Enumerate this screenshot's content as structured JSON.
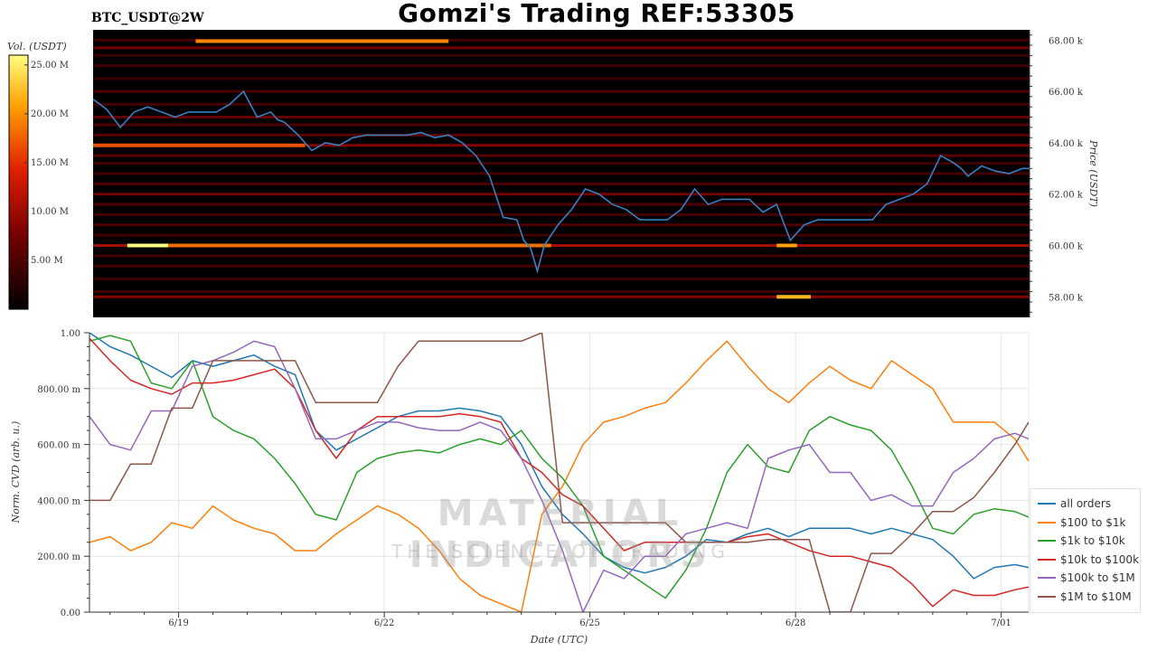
{
  "header": {
    "title": "Gomzi's Trading REF:53305",
    "symbol": "BTC_USDT@2W"
  },
  "watermark": {
    "line1": "MATERIAL INDICATORS",
    "line2": "THE SCIENCE OF TRADING"
  },
  "colors": {
    "price_line": "#3a7fc1",
    "heatmap_bg": "#000000"
  },
  "chart_data": [
    {
      "type": "heatmap",
      "title": "",
      "ylabel": "Price (USDT)",
      "colorbar_label": "Vol. (USDT)",
      "ylim": [
        57200,
        68400
      ],
      "yticks": [
        58000,
        60000,
        62000,
        64000,
        66000,
        68000
      ],
      "ytick_labels": [
        "58.00 k",
        "60.00 k",
        "62.00 k",
        "64.00 k",
        "66.00 k",
        "68.00 k"
      ],
      "colorbar_ticks": [
        5,
        10,
        15,
        20,
        25
      ],
      "colorbar_tick_labels": [
        "5.00 M",
        "10.00 M",
        "15.00 M",
        "20.00 M",
        "25.00 M"
      ],
      "colorbar_range": [
        0,
        26
      ],
      "xlim": [
        17.7,
        31.4
      ],
      "price_series": {
        "name": "",
        "x": [
          17.7,
          17.9,
          18.1,
          18.3,
          18.5,
          18.7,
          18.9,
          19.1,
          19.3,
          19.5,
          19.7,
          19.9,
          20.1,
          20.3,
          20.4,
          20.5,
          20.7,
          20.9,
          21.1,
          21.3,
          21.5,
          21.7,
          21.9,
          22.1,
          22.3,
          22.5,
          22.7,
          22.9,
          23.1,
          23.3,
          23.5,
          23.7,
          23.9,
          24.0,
          24.1,
          24.2,
          24.3,
          24.5,
          24.7,
          24.8,
          24.9,
          25.1,
          25.3,
          25.5,
          25.7,
          25.9,
          26.1,
          26.3,
          26.5,
          26.7,
          26.9,
          27.1,
          27.3,
          27.5,
          27.7,
          27.9,
          28.1,
          28.3,
          28.5,
          28.7,
          28.9,
          29.1,
          29.3,
          29.5,
          29.7,
          29.9,
          30.1,
          30.3,
          30.4,
          30.5,
          30.7,
          30.9,
          31.1,
          31.3,
          31.4
        ],
        "y": [
          65700,
          65300,
          64600,
          65200,
          65400,
          65200,
          65000,
          65200,
          65200,
          65200,
          65500,
          66000,
          65000,
          65200,
          64900,
          64800,
          64300,
          63700,
          64000,
          63900,
          64200,
          64300,
          64300,
          64300,
          64300,
          64400,
          64200,
          64300,
          64000,
          63500,
          62700,
          61100,
          61000,
          60200,
          59900,
          59000,
          60000,
          60800,
          61400,
          61800,
          62200,
          62000,
          61600,
          61400,
          61000,
          61000,
          61000,
          61400,
          62200,
          61600,
          61800,
          61800,
          61800,
          61300,
          61600,
          60200,
          60800,
          61000,
          61000,
          61000,
          61000,
          61000,
          61600,
          61800,
          62000,
          62400,
          63500,
          63200,
          63000,
          62700,
          63100,
          62900,
          62800,
          63000,
          63000
        ]
      },
      "levels": [
        {
          "price": 58000,
          "intensity": 0.6,
          "from": 17.7,
          "to": 31.4
        },
        {
          "price": 58200,
          "intensity": 0.3,
          "from": 17.7,
          "to": 31.4
        },
        {
          "price": 58700,
          "intensity": 0.25,
          "from": 17.7,
          "to": 31.4
        },
        {
          "price": 59200,
          "intensity": 0.3,
          "from": 17.7,
          "to": 31.4
        },
        {
          "price": 59600,
          "intensity": 0.3,
          "from": 17.7,
          "to": 31.4
        },
        {
          "price": 60000,
          "intensity": 0.75,
          "from": 17.7,
          "to": 31.4
        },
        {
          "price": 60400,
          "intensity": 0.3,
          "from": 17.7,
          "to": 31.4
        },
        {
          "price": 60800,
          "intensity": 0.35,
          "from": 17.7,
          "to": 31.4
        },
        {
          "price": 61200,
          "intensity": 0.3,
          "from": 17.7,
          "to": 31.4
        },
        {
          "price": 61600,
          "intensity": 0.35,
          "from": 17.7,
          "to": 31.4
        },
        {
          "price": 62000,
          "intensity": 0.5,
          "from": 17.7,
          "to": 31.4
        },
        {
          "price": 62400,
          "intensity": 0.35,
          "from": 17.7,
          "to": 31.4
        },
        {
          "price": 62800,
          "intensity": 0.3,
          "from": 17.7,
          "to": 31.4
        },
        {
          "price": 63200,
          "intensity": 0.3,
          "from": 17.7,
          "to": 31.4
        },
        {
          "price": 63500,
          "intensity": 0.4,
          "from": 17.7,
          "to": 31.4
        },
        {
          "price": 63900,
          "intensity": 0.6,
          "from": 17.7,
          "to": 31.4
        },
        {
          "price": 64300,
          "intensity": 0.4,
          "from": 17.7,
          "to": 31.4
        },
        {
          "price": 64700,
          "intensity": 0.35,
          "from": 17.7,
          "to": 31.4
        },
        {
          "price": 65000,
          "intensity": 0.45,
          "from": 17.7,
          "to": 31.4
        },
        {
          "price": 65500,
          "intensity": 0.3,
          "from": 17.7,
          "to": 31.4
        },
        {
          "price": 66000,
          "intensity": 0.35,
          "from": 17.7,
          "to": 31.4
        },
        {
          "price": 66500,
          "intensity": 0.25,
          "from": 17.7,
          "to": 31.4
        },
        {
          "price": 67000,
          "intensity": 0.3,
          "from": 17.7,
          "to": 31.4
        },
        {
          "price": 67400,
          "intensity": 0.25,
          "from": 17.7,
          "to": 31.4
        },
        {
          "price": 67700,
          "intensity": 0.5,
          "from": 17.7,
          "to": 31.4
        },
        {
          "price": 68000,
          "intensity": 0.3,
          "from": 17.7,
          "to": 31.4
        }
      ],
      "walls": [
        {
          "price": 67960,
          "from": 19.2,
          "to": 22.9,
          "intensity": 0.75
        },
        {
          "price": 60000,
          "from": 18.2,
          "to": 18.8,
          "intensity": 1.0
        },
        {
          "price": 60000,
          "from": 18.8,
          "to": 24.4,
          "intensity": 0.7
        },
        {
          "price": 60000,
          "from": 27.7,
          "to": 28.0,
          "intensity": 0.8
        },
        {
          "price": 58000,
          "from": 27.7,
          "to": 28.2,
          "intensity": 0.85
        },
        {
          "price": 63900,
          "from": 17.7,
          "to": 20.8,
          "intensity": 0.65
        }
      ]
    },
    {
      "type": "line",
      "title": "",
      "xlabel": "Date (UTC)",
      "ylabel": "Norm. CVD (arb. u.)",
      "xlim": [
        17.7,
        31.4
      ],
      "ylim": [
        0,
        1
      ],
      "xticks": [
        19,
        22,
        25,
        28,
        31
      ],
      "xtick_labels": [
        "6/19",
        "6/22",
        "6/25",
        "6/28",
        "7/01"
      ],
      "yticks": [
        0,
        0.2,
        0.4,
        0.6,
        0.8,
        1.0
      ],
      "ytick_labels": [
        "0.00",
        "200.00 m",
        "400.00 m",
        "600.00 m",
        "800.00 m",
        "1.00"
      ],
      "grid": true,
      "legend_position": "lower-right",
      "x": [
        17.7,
        18.0,
        18.3,
        18.6,
        18.9,
        19.2,
        19.5,
        19.8,
        20.1,
        20.4,
        20.7,
        21.0,
        21.3,
        21.6,
        21.9,
        22.2,
        22.5,
        22.8,
        23.1,
        23.4,
        23.7,
        24.0,
        24.3,
        24.6,
        24.9,
        25.2,
        25.5,
        25.8,
        26.1,
        26.4,
        26.7,
        27.0,
        27.3,
        27.6,
        27.9,
        28.2,
        28.5,
        28.8,
        29.1,
        29.4,
        29.7,
        30.0,
        30.3,
        30.6,
        30.9,
        31.2,
        31.4
      ],
      "series": [
        {
          "name": "all orders",
          "color": "#1f77b4",
          "values": [
            1.0,
            0.95,
            0.92,
            0.88,
            0.84,
            0.9,
            0.88,
            0.9,
            0.92,
            0.88,
            0.85,
            0.65,
            0.58,
            0.62,
            0.66,
            0.7,
            0.72,
            0.72,
            0.73,
            0.72,
            0.7,
            0.6,
            0.45,
            0.35,
            0.28,
            0.2,
            0.16,
            0.14,
            0.16,
            0.2,
            0.26,
            0.25,
            0.28,
            0.3,
            0.27,
            0.3,
            0.3,
            0.3,
            0.28,
            0.3,
            0.28,
            0.26,
            0.2,
            0.12,
            0.16,
            0.17,
            0.16
          ]
        },
        {
          "name": "$100 to $1k",
          "color": "#ff7f0e",
          "values": [
            0.25,
            0.27,
            0.22,
            0.25,
            0.32,
            0.3,
            0.38,
            0.33,
            0.3,
            0.28,
            0.22,
            0.22,
            0.28,
            0.33,
            0.38,
            0.35,
            0.3,
            0.22,
            0.12,
            0.06,
            0.03,
            0.0,
            0.35,
            0.45,
            0.6,
            0.68,
            0.7,
            0.73,
            0.75,
            0.82,
            0.9,
            0.97,
            0.88,
            0.8,
            0.75,
            0.82,
            0.88,
            0.83,
            0.8,
            0.9,
            0.85,
            0.8,
            0.68,
            0.68,
            0.68,
            0.62,
            0.54
          ]
        },
        {
          "name": "$1k to $10k",
          "color": "#2ca02c",
          "values": [
            0.97,
            0.99,
            0.97,
            0.82,
            0.8,
            0.9,
            0.7,
            0.65,
            0.62,
            0.55,
            0.46,
            0.35,
            0.33,
            0.5,
            0.55,
            0.57,
            0.58,
            0.57,
            0.6,
            0.62,
            0.6,
            0.65,
            0.55,
            0.48,
            0.38,
            0.2,
            0.15,
            0.1,
            0.05,
            0.15,
            0.3,
            0.5,
            0.6,
            0.52,
            0.5,
            0.65,
            0.7,
            0.67,
            0.65,
            0.58,
            0.45,
            0.3,
            0.28,
            0.35,
            0.37,
            0.36,
            0.34
          ]
        },
        {
          "name": "$10k to $100k",
          "color": "#d62728",
          "values": [
            0.98,
            0.9,
            0.83,
            0.8,
            0.78,
            0.82,
            0.82,
            0.83,
            0.85,
            0.87,
            0.8,
            0.65,
            0.55,
            0.65,
            0.7,
            0.7,
            0.7,
            0.7,
            0.71,
            0.7,
            0.68,
            0.55,
            0.5,
            0.42,
            0.38,
            0.3,
            0.22,
            0.25,
            0.25,
            0.25,
            0.25,
            0.25,
            0.27,
            0.28,
            0.25,
            0.22,
            0.2,
            0.2,
            0.18,
            0.16,
            0.1,
            0.02,
            0.08,
            0.06,
            0.06,
            0.08,
            0.09
          ]
        },
        {
          "name": "$100k to $1M",
          "color": "#9467bd",
          "values": [
            0.7,
            0.6,
            0.58,
            0.72,
            0.72,
            0.88,
            0.9,
            0.93,
            0.97,
            0.95,
            0.8,
            0.62,
            0.62,
            0.65,
            0.68,
            0.68,
            0.66,
            0.65,
            0.65,
            0.68,
            0.65,
            0.55,
            0.4,
            0.22,
            0.0,
            0.15,
            0.12,
            0.2,
            0.2,
            0.28,
            0.3,
            0.32,
            0.3,
            0.55,
            0.58,
            0.6,
            0.5,
            0.5,
            0.4,
            0.42,
            0.38,
            0.38,
            0.5,
            0.55,
            0.62,
            0.64,
            0.62
          ]
        },
        {
          "name": "$1M to $10M",
          "color": "#8c564b",
          "values": [
            0.4,
            0.4,
            0.53,
            0.53,
            0.73,
            0.73,
            0.9,
            0.9,
            0.9,
            0.9,
            0.9,
            0.75,
            0.75,
            0.75,
            0.75,
            0.88,
            0.97,
            0.97,
            0.97,
            0.97,
            0.97,
            0.97,
            1.0,
            0.32,
            0.32,
            0.32,
            0.32,
            0.32,
            0.32,
            0.25,
            0.25,
            0.25,
            0.25,
            0.26,
            0.26,
            0.26,
            0.0,
            0.0,
            0.21,
            0.21,
            0.28,
            0.36,
            0.36,
            0.41,
            0.5,
            0.6,
            0.68
          ]
        }
      ]
    }
  ]
}
